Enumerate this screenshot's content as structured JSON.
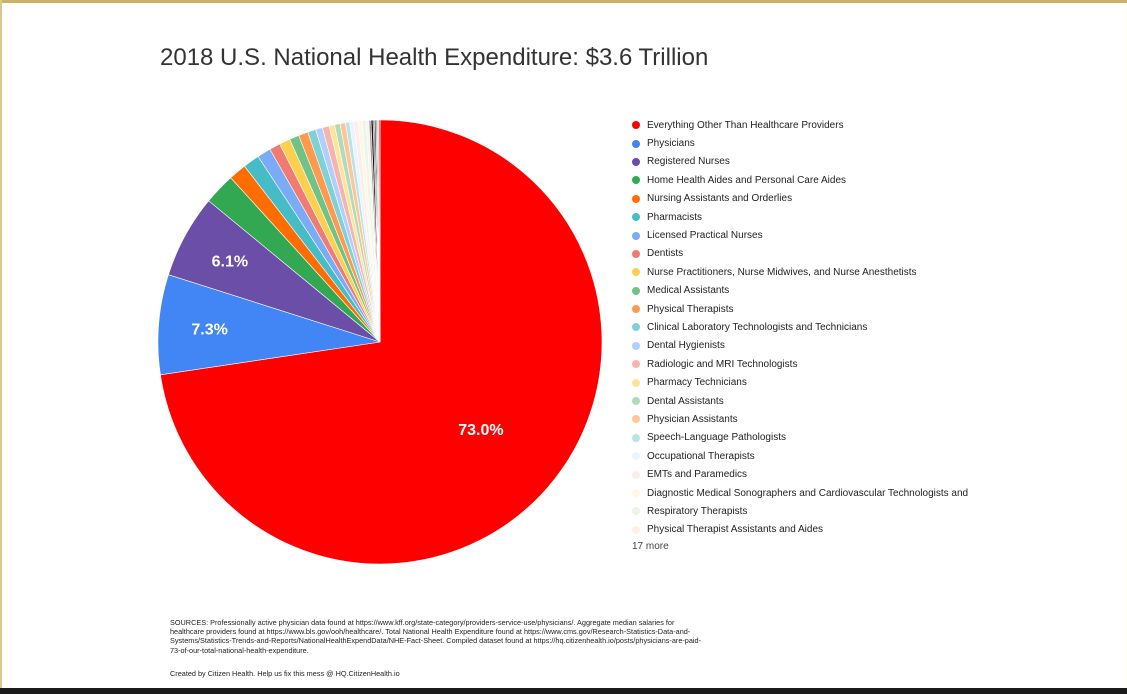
{
  "chart_data": {
    "type": "pie",
    "title": "2018 U.S. National Health Expenditure: $3.6 Trillion",
    "slices": [
      {
        "label": "Everything Other Than Healthcare Providers",
        "value": 73.0,
        "color": "#ff0000",
        "show_label": "73.0%"
      },
      {
        "label": "Physicians",
        "value": 7.3,
        "color": "#4285f4",
        "show_label": "7.3%"
      },
      {
        "label": "Registered Nurses",
        "value": 6.1,
        "color": "#6a4ea8",
        "show_label": "6.1%"
      },
      {
        "label": "Home Health Aides and Personal Care Aides",
        "value": 2.3,
        "color": "#33a853"
      },
      {
        "label": "Nursing Assistants and Orderlies",
        "value": 1.3,
        "color": "#ff6d01"
      },
      {
        "label": "Pharmacists",
        "value": 1.2,
        "color": "#46bdc6"
      },
      {
        "label": "Licensed Practical Nurses",
        "value": 1.0,
        "color": "#7baaf7"
      },
      {
        "label": "Dentists",
        "value": 0.8,
        "color": "#f07b72"
      },
      {
        "label": "Nurse Practitioners, Nurse Midwives, and Nurse Anesthetists",
        "value": 0.8,
        "color": "#fcd04f"
      },
      {
        "label": "Medical Assistants",
        "value": 0.7,
        "color": "#71c287"
      },
      {
        "label": "Physical Therapists",
        "value": 0.7,
        "color": "#ff994d"
      },
      {
        "label": "Clinical Laboratory Technologists and Technicians",
        "value": 0.6,
        "color": "#7ed1d7"
      },
      {
        "label": "Dental Hygienists",
        "value": 0.5,
        "color": "#b3cefb"
      },
      {
        "label": "Radiologic and MRI Technologists",
        "value": 0.5,
        "color": "#f7b4ae"
      },
      {
        "label": "Pharmacy Technicians",
        "value": 0.4,
        "color": "#fde49b"
      },
      {
        "label": "Dental Assistants",
        "value": 0.4,
        "color": "#aedcba"
      },
      {
        "label": "Physician Assistants",
        "value": 0.4,
        "color": "#ffc599"
      },
      {
        "label": "Speech-Language Pathologists",
        "value": 0.3,
        "color": "#b5e5e8"
      },
      {
        "label": "Occupational Therapists",
        "value": 0.3,
        "color": "#ecf3fe"
      },
      {
        "label": "EMTs and Paramedics",
        "value": 0.3,
        "color": "#fdeceb"
      },
      {
        "label": "Diagnostic Medical Sonographers and Cardiovascular Technologists and",
        "value": 0.3,
        "color": "#fff8e1"
      },
      {
        "label": "Respiratory Therapists",
        "value": 0.3,
        "color": "#e8f6ec"
      },
      {
        "label": "Physical Therapist Assistants and Aides",
        "value": 0.2,
        "color": "#fff0e4"
      },
      {
        "label": "",
        "value": 0.15,
        "color": "#999999"
      },
      {
        "label": "",
        "value": 0.15,
        "color": "#111111"
      },
      {
        "label": "",
        "value": 0.1,
        "color": "#555555"
      },
      {
        "label": "",
        "value": 0.1,
        "color": "#222222"
      },
      {
        "label": "",
        "value": 0.1,
        "color": "#9e9e9e"
      },
      {
        "label": "",
        "value": 0.1,
        "color": "#d9a3a3"
      },
      {
        "label": "",
        "value": 0.1,
        "color": "#c24c4c"
      }
    ],
    "legend_more": "17 more",
    "legend_position": "right"
  },
  "sources_text": "SOURCES: Professionally active physician data found at https://www.kff.org/state-category/providers-service-use/physicians/. Aggregate median salaries for healthcare providers found at https://www.bls.gov/ooh/healthcare/. Total National Health Expenditure found at https://www.cms.gov/Research-Statistics-Data-and-Systems/Statistics-Trends-and-Reports/NationalHealthExpendData/NHE-Fact-Sheet. Compiled dataset found at https://hq.citizenhealth.io/posts/physicians-are-paid-73-of-our-total-national-health-expenditure.",
  "credit_text": "Created by Citizen Health. Help us fix this mess @ HQ.CitizenHealth.io"
}
